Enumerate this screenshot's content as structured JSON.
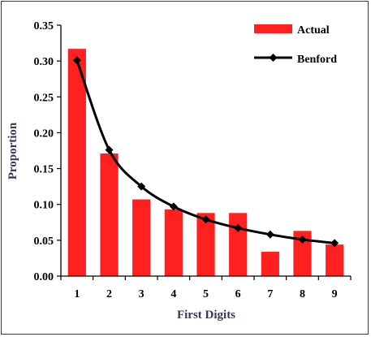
{
  "chart_data": {
    "type": "bar",
    "categories": [
      "1",
      "2",
      "3",
      "4",
      "5",
      "6",
      "7",
      "8",
      "9"
    ],
    "series": [
      {
        "name": "Actual",
        "type": "bar",
        "color": "#ff2020",
        "values": [
          0.317,
          0.171,
          0.107,
          0.093,
          0.088,
          0.088,
          0.034,
          0.063,
          0.044
        ]
      },
      {
        "name": "Benford",
        "type": "line",
        "color": "#000000",
        "marker": "diamond",
        "values": [
          0.301,
          0.176,
          0.125,
          0.097,
          0.079,
          0.067,
          0.058,
          0.051,
          0.046
        ]
      }
    ],
    "xlabel": "First Digits",
    "ylabel": "Proportion",
    "ylim": [
      0,
      0.35
    ],
    "yticks": [
      "0.00",
      "0.05",
      "0.10",
      "0.15",
      "0.20",
      "0.25",
      "0.30",
      "0.35"
    ],
    "yticks_values": [
      0,
      0.05,
      0.1,
      0.15,
      0.2,
      0.25,
      0.3,
      0.35
    ],
    "grid": false,
    "legend_position": "top-right"
  }
}
